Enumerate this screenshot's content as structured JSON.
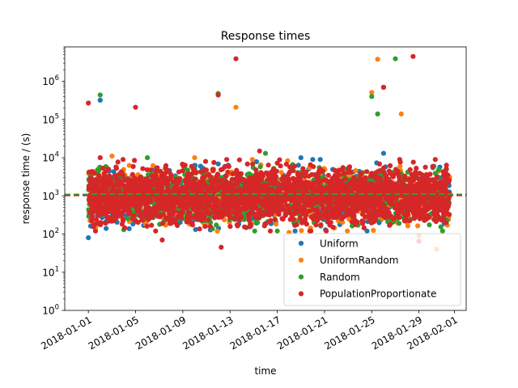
{
  "chart_data": {
    "type": "scatter",
    "title": "Response times",
    "xlabel": "time",
    "ylabel": "response time / (s)",
    "yscale": "log",
    "ylim": [
      1,
      8000000
    ],
    "xlim": [
      "2017-12-30",
      "2018-02-02"
    ],
    "x_ticks": [
      "2018-01-01",
      "2018-01-05",
      "2018-01-09",
      "2018-01-13",
      "2018-01-17",
      "2018-01-21",
      "2018-01-25",
      "2018-01-29",
      "2018-02-01"
    ],
    "y_ticks": [
      {
        "value": 1,
        "base": "10",
        "exp": "0"
      },
      {
        "value": 10,
        "base": "10",
        "exp": "1"
      },
      {
        "value": 100,
        "base": "10",
        "exp": "2"
      },
      {
        "value": 1000,
        "base": "10",
        "exp": "3"
      },
      {
        "value": 10000,
        "base": "10",
        "exp": "4"
      },
      {
        "value": 100000,
        "base": "10",
        "exp": "5"
      },
      {
        "value": 1000000,
        "base": "10",
        "exp": "6"
      }
    ],
    "grid": false,
    "legend_position": "lower-right",
    "dense_band": {
      "x_start": "2018-01-01",
      "x_end": "2018-01-31",
      "typical_low": 200,
      "typical_high": 5000
    },
    "reference_line": {
      "value": 1080,
      "style": "dashed"
    },
    "series": [
      {
        "name": "Uniform",
        "color": "#1f77b4",
        "reference_value": 1050,
        "outliers": [
          {
            "x": "2018-01-01",
            "y": 80
          },
          {
            "x": "2018-01-02",
            "y": 320000
          },
          {
            "x": "2018-01-02 12:00",
            "y": 140
          },
          {
            "x": "2018-01-10 12:00",
            "y": 6000
          },
          {
            "x": "2018-01-19",
            "y": 10000
          },
          {
            "x": "2018-01-20",
            "y": 9000
          },
          {
            "x": "2018-01-26",
            "y": 13000
          },
          {
            "x": "2018-01-26",
            "y": 700000
          },
          {
            "x": "2018-01-21 12:00",
            "y": 55
          }
        ]
      },
      {
        "name": "UniformRandom",
        "color": "#ff7f0e",
        "reference_value": 1100,
        "outliers": [
          {
            "x": "2018-01-03",
            "y": 11000
          },
          {
            "x": "2018-01-10",
            "y": 10000
          },
          {
            "x": "2018-01-13 12:00",
            "y": 210000
          },
          {
            "x": "2018-01-25",
            "y": 510000
          },
          {
            "x": "2018-01-25 12:00",
            "y": 3800000
          },
          {
            "x": "2018-01-27 12:00",
            "y": 140000
          },
          {
            "x": "2018-01-30 12:00",
            "y": 40
          },
          {
            "x": "2018-01-29",
            "y": 90
          },
          {
            "x": "2018-01-18",
            "y": 110
          }
        ]
      },
      {
        "name": "Random",
        "color": "#2ca02c",
        "reference_value": 1080,
        "outliers": [
          {
            "x": "2018-01-02",
            "y": 440000
          },
          {
            "x": "2018-01-12",
            "y": 480000
          },
          {
            "x": "2018-01-25",
            "y": 400000
          },
          {
            "x": "2018-01-25 12:00",
            "y": 140000
          },
          {
            "x": "2018-01-27",
            "y": 3900000
          },
          {
            "x": "2018-01-16",
            "y": 13000
          },
          {
            "x": "2018-01-06",
            "y": 10000
          },
          {
            "x": "2018-01-04",
            "y": 130
          },
          {
            "x": "2018-01-17",
            "y": 120
          },
          {
            "x": "2018-01-31",
            "y": 120
          }
        ]
      },
      {
        "name": "PopulationProportionate",
        "color": "#d62728",
        "reference_value": 1020,
        "outliers": [
          {
            "x": "2018-01-01",
            "y": 270000
          },
          {
            "x": "2018-01-05",
            "y": 210000
          },
          {
            "x": "2018-01-12",
            "y": 440000
          },
          {
            "x": "2018-01-13 12:00",
            "y": 3900000
          },
          {
            "x": "2018-01-26",
            "y": 700000
          },
          {
            "x": "2018-01-28 12:00",
            "y": 4500000
          },
          {
            "x": "2018-01-12 06:00",
            "y": 45
          },
          {
            "x": "2018-01-07 06:00",
            "y": 70
          },
          {
            "x": "2018-01-29",
            "y": 65
          },
          {
            "x": "2018-01-15 12:00",
            "y": 15000
          },
          {
            "x": "2018-01-02",
            "y": 10000
          }
        ]
      }
    ]
  }
}
